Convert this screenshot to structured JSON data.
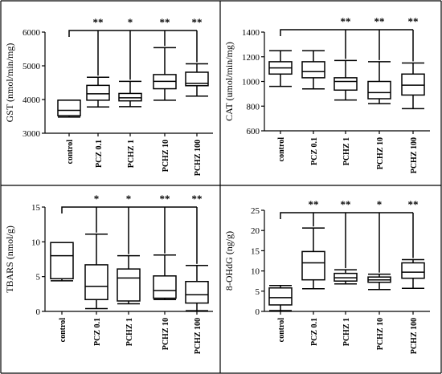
{
  "chart_data": [
    {
      "type": "box",
      "ylabel": "GST (nmol/min/mg)",
      "ylim": [
        3000,
        6000
      ],
      "yticks": [
        "3000",
        "4000",
        "5000",
        "6000"
      ],
      "categories": [
        "control",
        "PCZ 0.1",
        "PCHZ 1",
        "PCHZ 10",
        "PCHZ 100"
      ],
      "significance": [
        "",
        "**",
        "*",
        "**",
        "**"
      ],
      "boxes": [
        {
          "min": 3480,
          "q1": 3520,
          "median": 3680,
          "q3": 3980,
          "max": 3980
        },
        {
          "min": 3780,
          "q1": 3980,
          "median": 4170,
          "q3": 4420,
          "max": 4660
        },
        {
          "min": 3790,
          "q1": 3960,
          "median": 4050,
          "q3": 4180,
          "max": 4540
        },
        {
          "min": 3980,
          "q1": 4320,
          "median": 4540,
          "q3": 4740,
          "max": 5540
        },
        {
          "min": 4100,
          "q1": 4410,
          "median": 4480,
          "q3": 4810,
          "max": 5060
        }
      ]
    },
    {
      "type": "box",
      "ylabel": "CAT (umol/min/mg)",
      "ylim": [
        600,
        1400
      ],
      "yticks": [
        "600",
        "800",
        "1000",
        "1200",
        "1400"
      ],
      "categories": [
        "control",
        "PCZ 0.1",
        "PCHZ 1",
        "PCHZ 10",
        "PCHZ 100"
      ],
      "significance": [
        "",
        "",
        "**",
        "**",
        "**"
      ],
      "boxes": [
        {
          "min": 960,
          "q1": 1060,
          "median": 1110,
          "q3": 1160,
          "max": 1250
        },
        {
          "min": 940,
          "q1": 1030,
          "median": 1080,
          "q3": 1160,
          "max": 1250
        },
        {
          "min": 850,
          "q1": 930,
          "median": 1000,
          "q3": 1030,
          "max": 1170
        },
        {
          "min": 820,
          "q1": 860,
          "median": 910,
          "q3": 1000,
          "max": 1160
        },
        {
          "min": 780,
          "q1": 890,
          "median": 970,
          "q3": 1060,
          "max": 1150
        }
      ]
    },
    {
      "type": "box",
      "ylabel": "TBARS (nmol/g)",
      "ylim": [
        0,
        15
      ],
      "yticks": [
        "0",
        "5",
        "10",
        "15"
      ],
      "categories": [
        "control",
        "PCZ 0.1",
        "PCHZ 1",
        "PCHZ 10",
        "PCHZ 100"
      ],
      "significance": [
        "",
        "*",
        "*",
        "**",
        "**"
      ],
      "boxes": [
        {
          "min": 4.4,
          "q1": 4.7,
          "median": 8.0,
          "q3": 9.9,
          "max": 9.9
        },
        {
          "min": 0.4,
          "q1": 1.7,
          "median": 3.6,
          "q3": 6.7,
          "max": 11.1
        },
        {
          "min": 1.1,
          "q1": 1.5,
          "median": 4.8,
          "q3": 6.1,
          "max": 8.0
        },
        {
          "min": 1.7,
          "q1": 1.9,
          "median": 3.0,
          "q3": 5.1,
          "max": 8.1
        },
        {
          "min": 0.1,
          "q1": 1.2,
          "median": 2.4,
          "q3": 4.3,
          "max": 6.6
        }
      ]
    },
    {
      "type": "box",
      "ylabel": "8-OHdG (ng/g)",
      "ylim": [
        0,
        25
      ],
      "yticks": [
        "0",
        "5",
        "10",
        "15",
        "20",
        "25"
      ],
      "categories": [
        "control",
        "PCZ 0.1",
        "PCHZ 1",
        "PCHZ 10",
        "PCHZ 100"
      ],
      "significance": [
        "",
        "**",
        "**",
        "*",
        "**"
      ],
      "boxes": [
        {
          "min": 0.2,
          "q1": 1.6,
          "median": 3.4,
          "q3": 5.8,
          "max": 6.4
        },
        {
          "min": 5.6,
          "q1": 7.8,
          "median": 12.0,
          "q3": 14.8,
          "max": 20.6
        },
        {
          "min": 6.8,
          "q1": 7.5,
          "median": 8.3,
          "q3": 9.4,
          "max": 10.3
        },
        {
          "min": 5.4,
          "q1": 7.2,
          "median": 7.8,
          "q3": 8.5,
          "max": 9.2
        },
        {
          "min": 5.7,
          "q1": 8.2,
          "median": 9.7,
          "q3": 12.0,
          "max": 12.8
        }
      ]
    }
  ]
}
